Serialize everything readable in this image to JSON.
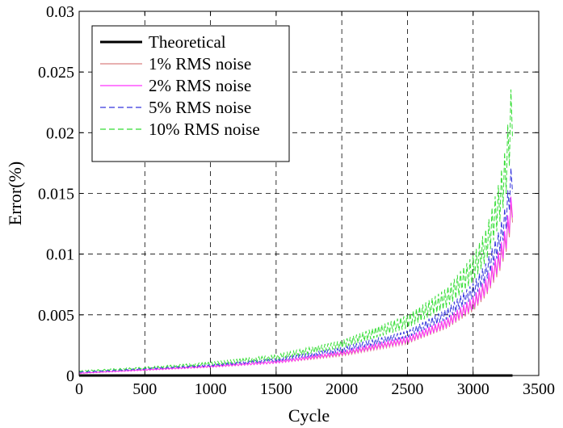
{
  "chart_data": {
    "type": "line",
    "title": "",
    "xlabel": "Cycle",
    "ylabel": "Error(%)",
    "xlim": [
      0,
      3500
    ],
    "ylim": [
      0,
      0.03
    ],
    "xticks": [
      0,
      500,
      1000,
      1500,
      2000,
      2500,
      3000,
      3500
    ],
    "xtick_labels": [
      "0",
      "500",
      "1000",
      "1500",
      "2000",
      "2500",
      "3000",
      "3500"
    ],
    "yticks": [
      0,
      0.005,
      0.01,
      0.015,
      0.02,
      0.025,
      0.03
    ],
    "ytick_labels": [
      "0",
      "0.005",
      "0.01",
      "0.015",
      "0.02",
      "0.025",
      "0.03"
    ],
    "grid": true,
    "legend_position": "top-left",
    "x": [
      0,
      500,
      1000,
      1500,
      2000,
      2500,
      2800,
      3000,
      3100,
      3200,
      3250,
      3300
    ],
    "series": [
      {
        "name": "Theoretical",
        "color": "#000000",
        "style": "solid",
        "values": [
          0,
          0,
          0,
          0,
          0,
          0,
          0,
          0,
          0,
          0,
          0,
          0
        ]
      },
      {
        "name": "1% RMS noise",
        "color": "#d98080",
        "style": "solid",
        "values": [
          0.0002,
          0.0005,
          0.0008,
          0.0012,
          0.0019,
          0.0031,
          0.0046,
          0.0063,
          0.0078,
          0.0101,
          0.012,
          0.015
        ]
      },
      {
        "name": "2% RMS noise",
        "color": "#ff33ff",
        "style": "solid",
        "values": [
          0.0002,
          0.0005,
          0.0008,
          0.0012,
          0.002,
          0.0032,
          0.0047,
          0.0065,
          0.008,
          0.0104,
          0.0123,
          0.0155
        ]
      },
      {
        "name": "5% RMS noise",
        "color": "#3333dd",
        "style": "dashed",
        "values": [
          0.0003,
          0.0006,
          0.0009,
          0.0014,
          0.0023,
          0.0037,
          0.0055,
          0.0076,
          0.0093,
          0.012,
          0.0142,
          0.018
        ]
      },
      {
        "name": "10% RMS noise",
        "color": "#33dd33",
        "style": "dashed",
        "values": [
          0.0004,
          0.0007,
          0.0011,
          0.0017,
          0.0029,
          0.005,
          0.0072,
          0.0099,
          0.0121,
          0.016,
          0.019,
          0.025
        ]
      }
    ]
  }
}
